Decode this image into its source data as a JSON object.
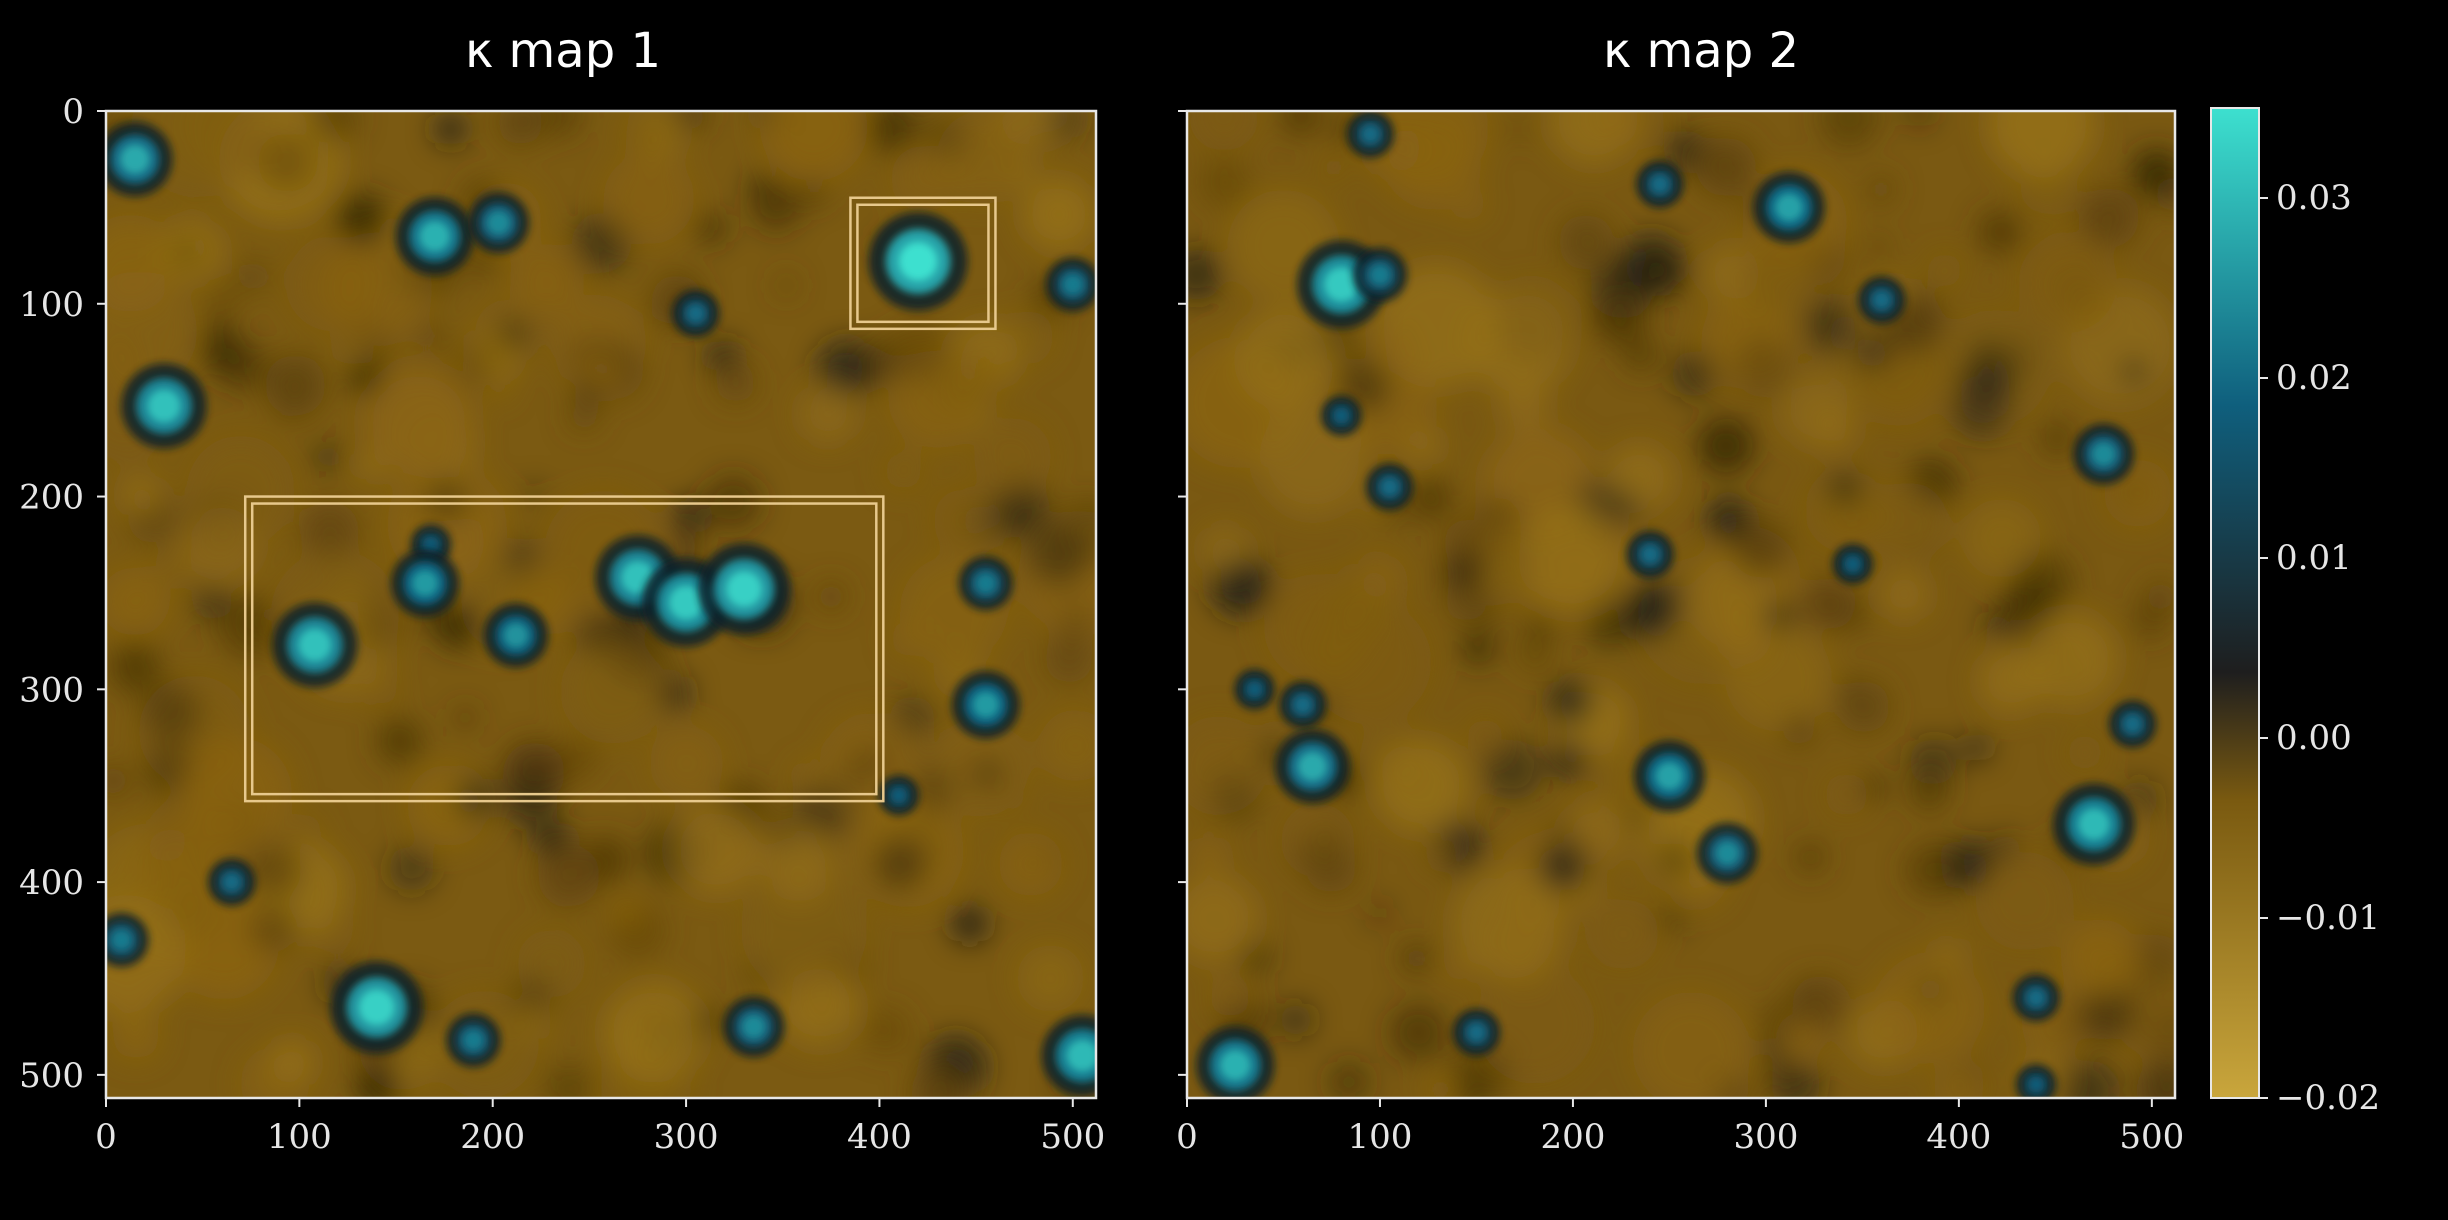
{
  "chart_data": [
    {
      "type": "heatmap",
      "title": "κ map 1",
      "xlabel": "",
      "ylabel": "",
      "xlim": [
        0,
        512
      ],
      "ylim": [
        512,
        0
      ],
      "x_ticks": [
        "0",
        "100",
        "200",
        "300",
        "400",
        "500"
      ],
      "y_ticks": [
        "0",
        "100",
        "200",
        "300",
        "400",
        "500"
      ],
      "grid": false,
      "bright_peaks": [
        {
          "x": 15,
          "y": 25,
          "value": 0.028
        },
        {
          "x": 170,
          "y": 65,
          "value": 0.029
        },
        {
          "x": 203,
          "y": 58,
          "value": 0.024
        },
        {
          "x": 305,
          "y": 105,
          "value": 0.02
        },
        {
          "x": 420,
          "y": 78,
          "value": 0.035
        },
        {
          "x": 500,
          "y": 90,
          "value": 0.022
        },
        {
          "x": 30,
          "y": 153,
          "value": 0.031
        },
        {
          "x": 168,
          "y": 225,
          "value": 0.018
        },
        {
          "x": 108,
          "y": 277,
          "value": 0.031
        },
        {
          "x": 165,
          "y": 245,
          "value": 0.026
        },
        {
          "x": 212,
          "y": 272,
          "value": 0.025
        },
        {
          "x": 275,
          "y": 242,
          "value": 0.031
        },
        {
          "x": 300,
          "y": 255,
          "value": 0.032
        },
        {
          "x": 330,
          "y": 248,
          "value": 0.033
        },
        {
          "x": 455,
          "y": 245,
          "value": 0.022
        },
        {
          "x": 455,
          "y": 308,
          "value": 0.026
        },
        {
          "x": 410,
          "y": 355,
          "value": 0.018
        },
        {
          "x": 65,
          "y": 400,
          "value": 0.02
        },
        {
          "x": 8,
          "y": 430,
          "value": 0.022
        },
        {
          "x": 140,
          "y": 465,
          "value": 0.033
        },
        {
          "x": 335,
          "y": 475,
          "value": 0.024
        },
        {
          "x": 190,
          "y": 482,
          "value": 0.022
        },
        {
          "x": 505,
          "y": 490,
          "value": 0.03
        }
      ],
      "annotations": [
        {
          "shape": "rectangle",
          "x_range": [
            385,
            460
          ],
          "y_range": [
            45,
            113
          ]
        },
        {
          "shape": "rectangle",
          "x_range": [
            72,
            402
          ],
          "y_range": [
            200,
            358
          ]
        }
      ]
    },
    {
      "type": "heatmap",
      "title": "κ map 2",
      "xlabel": "",
      "ylabel": "",
      "xlim": [
        0,
        512
      ],
      "ylim": [
        512,
        0
      ],
      "x_ticks": [
        "0",
        "100",
        "200",
        "300",
        "400",
        "500"
      ],
      "grid": false,
      "bright_peaks": [
        {
          "x": 80,
          "y": 90,
          "value": 0.032
        },
        {
          "x": 100,
          "y": 85,
          "value": 0.022
        },
        {
          "x": 95,
          "y": 12,
          "value": 0.02
        },
        {
          "x": 245,
          "y": 38,
          "value": 0.02
        },
        {
          "x": 312,
          "y": 50,
          "value": 0.027
        },
        {
          "x": 360,
          "y": 98,
          "value": 0.02
        },
        {
          "x": 80,
          "y": 158,
          "value": 0.018
        },
        {
          "x": 475,
          "y": 178,
          "value": 0.024
        },
        {
          "x": 105,
          "y": 195,
          "value": 0.02
        },
        {
          "x": 240,
          "y": 230,
          "value": 0.02
        },
        {
          "x": 345,
          "y": 235,
          "value": 0.018
        },
        {
          "x": 35,
          "y": 300,
          "value": 0.018
        },
        {
          "x": 60,
          "y": 308,
          "value": 0.02
        },
        {
          "x": 65,
          "y": 340,
          "value": 0.028
        },
        {
          "x": 250,
          "y": 345,
          "value": 0.027
        },
        {
          "x": 280,
          "y": 385,
          "value": 0.024
        },
        {
          "x": 470,
          "y": 370,
          "value": 0.03
        },
        {
          "x": 490,
          "y": 318,
          "value": 0.02
        },
        {
          "x": 25,
          "y": 495,
          "value": 0.029
        },
        {
          "x": 150,
          "y": 478,
          "value": 0.02
        },
        {
          "x": 440,
          "y": 460,
          "value": 0.02
        },
        {
          "x": 440,
          "y": 505,
          "value": 0.018
        }
      ]
    }
  ],
  "colorbar": {
    "range": [
      -0.02,
      0.035
    ],
    "ticks": [
      "0.03",
      "0.02",
      "0.01",
      "0.00",
      "−0.01",
      "−0.02"
    ],
    "tick_values": [
      0.03,
      0.02,
      0.01,
      0.0,
      -0.01,
      -0.02
    ],
    "colors": [
      "#c9a63c",
      "#7a5a10",
      "#1e1e1e",
      "#0f5f7d",
      "#3de0cf"
    ]
  }
}
